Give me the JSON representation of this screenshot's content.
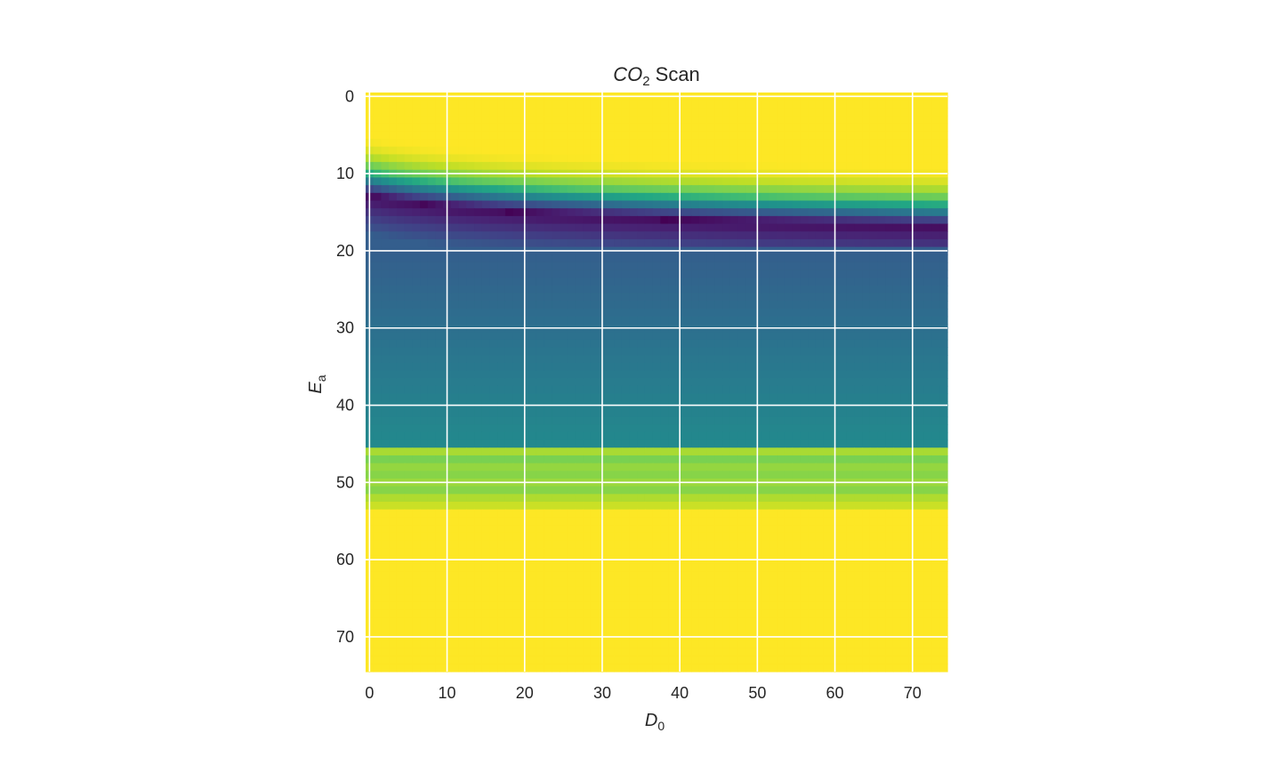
{
  "chart_data": {
    "type": "heatmap",
    "title": {
      "italic": "CO",
      "subscript": "2",
      "rest": " Scan"
    },
    "xlabel": {
      "italic": "D",
      "subscript": "0"
    },
    "ylabel": {
      "italic": "E",
      "subscript": "a"
    },
    "x_range": [
      -0.5,
      74.5
    ],
    "y_range": [
      -0.5,
      74.5
    ],
    "y_inverted": true,
    "x_ticks": [
      "0",
      "10",
      "20",
      "30",
      "40",
      "50",
      "60",
      "70"
    ],
    "y_ticks": [
      "0",
      "10",
      "20",
      "30",
      "40",
      "50",
      "60",
      "70"
    ],
    "grid": true,
    "colormap": "viridis",
    "grid_size": 75,
    "notes": "Values normalized 0 (dark purple) to 1 (yellow); Ea rows 0-8 yellow, transition band 9-19 drifting slightly with D0, plateau 20-45 blue/teal, bright green band 46-53, yellow 54-74."
  }
}
